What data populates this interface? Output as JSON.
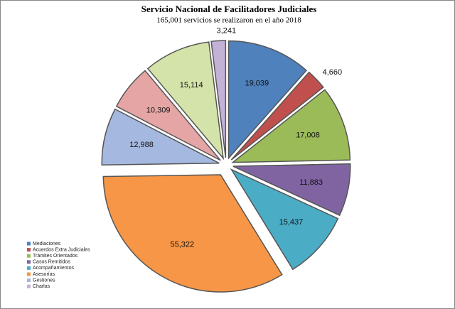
{
  "chart_data": {
    "type": "pie",
    "title": "Servicio Nacional de Facilitadores Judiciales",
    "subtitle": "165,001 servicios se realizaron en el año 2018",
    "categories": [
      "Mediaciones",
      "Acuerdos Extra Judiciales",
      "Trámites Orientados",
      "Casos Remitidos",
      "Acompañamientos",
      "Asesorías",
      "Gestiones",
      null,
      null,
      "Charlas"
    ],
    "values": [
      19039,
      4660,
      17008,
      11883,
      15437,
      55322,
      12988,
      10309,
      15114,
      3241
    ],
    "value_labels": [
      "19,039",
      "4,660",
      "17,008",
      "11,883",
      "15,437",
      "55,322",
      "12,988",
      "10,309",
      "15,114",
      "3,241"
    ],
    "colors": [
      "#4f81bd",
      "#c0504d",
      "#9bbb59",
      "#8064a2",
      "#4bacc6",
      "#f79646",
      "#a5b8e0",
      "#e6a5a5",
      "#d4e3a9",
      "#c2b2d6"
    ],
    "legend": "bottom-left"
  }
}
